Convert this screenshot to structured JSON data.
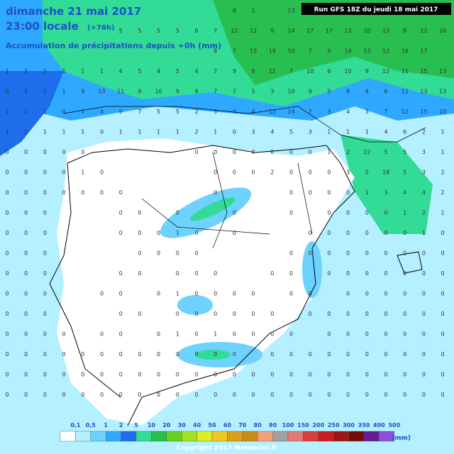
{
  "header": {
    "title": "dimanche 21 mai 2017",
    "time": "23:00 locale",
    "lead": "(+76h)",
    "subtitle": "Accumulation de précipitations depuis +0h (mm)",
    "run": "Run GFS 18Z du jeudi 18 mai 2017"
  },
  "grid_labels": [
    [
      null,
      null,
      null,
      null,
      null,
      null,
      null,
      null,
      null,
      null,
      null,
      null,
      "8",
      "1",
      null,
      "13",
      null,
      null,
      null,
      null,
      null,
      null,
      null,
      null
    ],
    [
      null,
      null,
      null,
      null,
      null,
      null,
      "5",
      "5",
      "5",
      "5",
      "6",
      "7",
      "12",
      "12",
      "9",
      "14",
      "17",
      "17",
      "13",
      "10",
      "13",
      "8",
      "22",
      "26"
    ],
    [
      null,
      null,
      null,
      null,
      null,
      null,
      null,
      null,
      null,
      null,
      null,
      "8",
      "7",
      "13",
      "19",
      "10",
      "7",
      "9",
      "14",
      "13",
      "12",
      "16",
      "17",
      null
    ],
    [
      "1",
      "1",
      "1",
      "1",
      "1",
      "1",
      "4",
      "5",
      "4",
      "5",
      "4",
      "7",
      "9",
      "8",
      "12",
      "7",
      "10",
      "6",
      "10",
      "9",
      "12",
      "11",
      "15",
      "13"
    ],
    [
      "0",
      "1",
      "1",
      "1",
      "9",
      "13",
      "11",
      "9",
      "10",
      "9",
      "8",
      "7",
      "7",
      "5",
      "3",
      "10",
      "9",
      "5",
      "8",
      "4",
      "6",
      "12",
      "13",
      "13"
    ],
    [
      "1",
      "1",
      "1",
      "0",
      "1",
      "4",
      "9",
      "7",
      "5",
      "5",
      "2",
      "3",
      "4",
      "4",
      "12",
      "14",
      "7",
      "3",
      "4",
      "3",
      "7",
      "12",
      "15",
      "10"
    ],
    [
      "1",
      "1",
      "1",
      "1",
      "1",
      "0",
      "1",
      "1",
      "1",
      "1",
      "2",
      "1",
      "0",
      "3",
      "4",
      "5",
      "3",
      "1",
      "1",
      "1",
      "4",
      "6",
      "2",
      "1"
    ],
    [
      "0",
      "0",
      "0",
      "0",
      "0",
      null,
      null,
      null,
      null,
      null,
      "0",
      "0",
      "0",
      "0",
      "0",
      "0",
      "0",
      "1",
      "2",
      "22",
      "5",
      "5",
      "3",
      "1"
    ],
    [
      "0",
      "0",
      "0",
      "0",
      "1",
      "0",
      null,
      null,
      null,
      null,
      null,
      "0",
      "0",
      "0",
      "2",
      "0",
      "0",
      "0",
      "3",
      "5",
      "18",
      "5",
      "3",
      "2"
    ],
    [
      "0",
      "0",
      "0",
      "0",
      "0",
      "0",
      "0",
      null,
      null,
      null,
      null,
      "0",
      null,
      null,
      null,
      "0",
      "0",
      "0",
      "0",
      "1",
      "3",
      "4",
      "4",
      "2"
    ],
    [
      "0",
      "0",
      "0",
      null,
      null,
      null,
      "0",
      "0",
      null,
      "0",
      null,
      null,
      "0",
      null,
      null,
      "0",
      null,
      "0",
      "0",
      "0",
      "0",
      "1",
      "2",
      "1"
    ],
    [
      "0",
      "0",
      "0",
      null,
      null,
      null,
      "0",
      "0",
      "0",
      "1",
      "0",
      null,
      "0",
      null,
      null,
      null,
      "0",
      "0",
      "0",
      "0",
      "0",
      "0",
      "1",
      "0"
    ],
    [
      "0",
      "0",
      "0",
      null,
      null,
      null,
      null,
      "0",
      "0",
      "0",
      "0",
      null,
      null,
      null,
      null,
      "0",
      "0",
      "0",
      "0",
      "0",
      "0",
      "0",
      "0",
      "0"
    ],
    [
      "0",
      "0",
      "0",
      null,
      null,
      null,
      "0",
      "0",
      null,
      "0",
      "0",
      "0",
      null,
      null,
      "0",
      "0",
      null,
      "0",
      "0",
      "0",
      "0",
      "0",
      "0",
      "0"
    ],
    [
      "0",
      "0",
      "0",
      null,
      null,
      "0",
      "0",
      null,
      "0",
      "1",
      "0",
      "0",
      "0",
      "0",
      null,
      "0",
      "0",
      null,
      "0",
      "0",
      "0",
      "0",
      "0",
      "0"
    ],
    [
      "0",
      "0",
      "0",
      null,
      null,
      null,
      "0",
      "0",
      null,
      "0",
      "0",
      "0",
      "0",
      "0",
      "0",
      null,
      "0",
      "0",
      "0",
      "0",
      "0",
      "0",
      "0",
      "0"
    ],
    [
      "0",
      "0",
      "0",
      "0",
      null,
      "0",
      "0",
      null,
      "0",
      "1",
      "0",
      "1",
      "0",
      "0",
      "0",
      "0",
      null,
      "0",
      "0",
      "0",
      "0",
      "0",
      "0",
      "0"
    ],
    [
      "0",
      "0",
      "0",
      "0",
      "0",
      "0",
      "0",
      "0",
      "0",
      "0",
      "0",
      "0",
      "0",
      null,
      "0",
      "0",
      "0",
      "0",
      "0",
      "0",
      "0",
      "0",
      "0",
      "0"
    ],
    [
      "0",
      "0",
      "0",
      "0",
      "0",
      "0",
      "0",
      "0",
      "0",
      "0",
      "0",
      "0",
      "0",
      "0",
      "0",
      "0",
      "0",
      "0",
      "0",
      "0",
      "0",
      "0",
      "0",
      "0"
    ],
    [
      "0",
      "0",
      "0",
      "0",
      "0",
      "0",
      "0",
      "0",
      "0",
      "0",
      "0",
      "0",
      "0",
      "0",
      "0",
      "0",
      "0",
      "0",
      "0",
      "0",
      "0",
      "0",
      "0",
      "0"
    ]
  ],
  "legend": {
    "labels": [
      "0,1",
      "0,5",
      "1",
      "2",
      "5",
      "10",
      "20",
      "30",
      "40",
      "50",
      "60",
      "70",
      "80",
      "90",
      "100",
      "150",
      "200",
      "250",
      "300",
      "350",
      "400",
      "500"
    ],
    "colors": [
      "#ffffff",
      "#b4f0ff",
      "#6ed2ff",
      "#2fa8ff",
      "#1e6eeb",
      "#32dc96",
      "#28be50",
      "#64d21e",
      "#a0e61e",
      "#dcf01e",
      "#f0c81e",
      "#dca014",
      "#c88c14",
      "#f5a078",
      "#a0a0a0",
      "#e67878",
      "#dc3c3c",
      "#c81e1e",
      "#a01414",
      "#780a0a",
      "#641e96",
      "#8c50dc"
    ],
    "unit": "(mm)"
  },
  "copyright": "Copyright 2017 Meteociel.fr"
}
